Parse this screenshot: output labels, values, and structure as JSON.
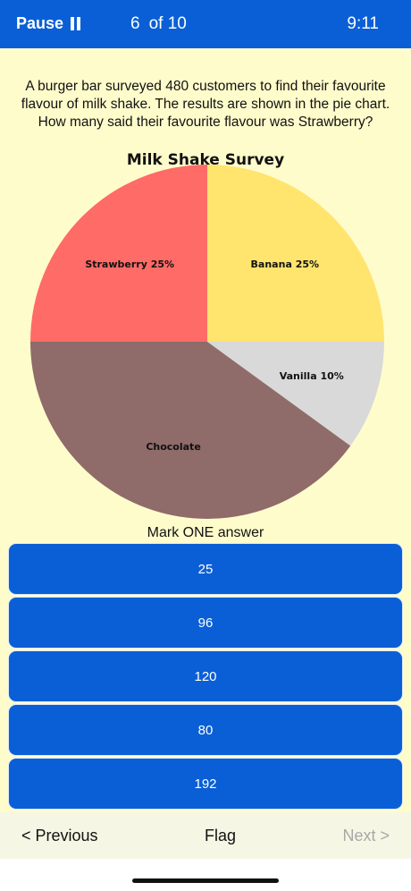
{
  "header": {
    "pause_label": "Pause",
    "counter_current": "6",
    "counter_total": "of 10",
    "time": "9:11"
  },
  "question": {
    "text": "A burger bar surveyed 480 customers to find their favourite flavour of milk shake. The results are shown in the pie chart. How many said their favourite flavour was Strawberry?"
  },
  "chart_data": {
    "type": "pie",
    "title": "Milk Shake Survey",
    "slices": [
      {
        "label": "Banana 25%",
        "value": 25,
        "color": "#ffe46e"
      },
      {
        "label": "Vanilla 10%",
        "value": 10,
        "color": "#d9d9d9"
      },
      {
        "label": "Chocolate",
        "value": 40,
        "color": "#8f6b69"
      },
      {
        "label": "Strawberry 25%",
        "value": 25,
        "color": "#ff6b66"
      }
    ]
  },
  "instruction": "Mark ONE answer",
  "answers": [
    "25",
    "96",
    "120",
    "80",
    "192"
  ],
  "footer": {
    "previous_label": "< Previous",
    "flag_label": "Flag",
    "next_label": "Next >"
  },
  "colors": {
    "accent": "#0a5fd6",
    "background": "#fffccc"
  }
}
